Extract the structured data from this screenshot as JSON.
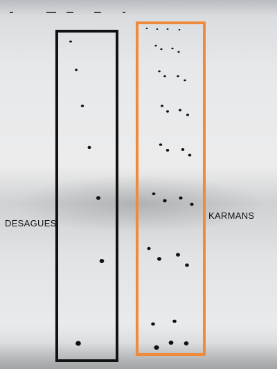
{
  "labels": {
    "left": "DESAGUES",
    "right": "KARMANS"
  },
  "colors": {
    "left_frame": "#111111",
    "right_frame": "#f08a3a",
    "hole": "#111111"
  }
}
